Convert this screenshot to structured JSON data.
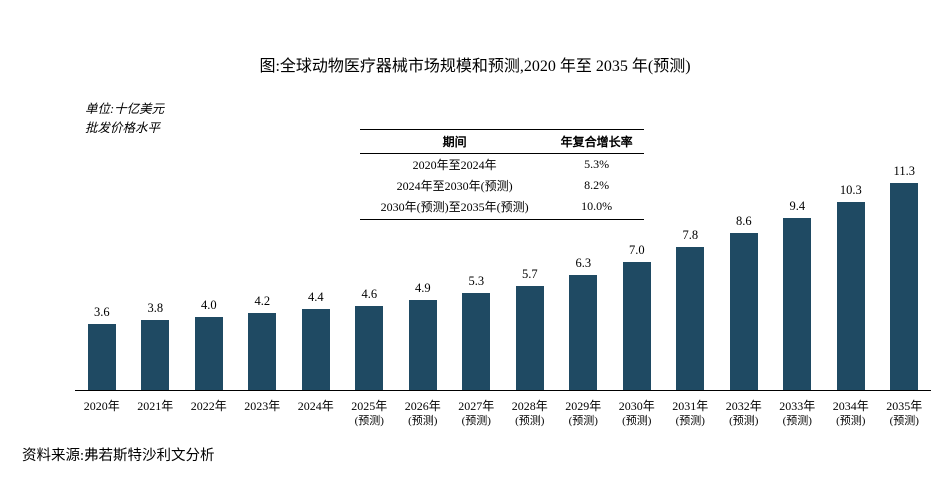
{
  "title": "图:全球动物医疗器械市场规模和预测,2020 年至 2035 年(预测)",
  "unit_note": {
    "line1": "单位:十亿美元",
    "line2": "批发价格水平"
  },
  "cagr_table": {
    "headers": [
      "期间",
      "年复合增长率"
    ],
    "rows": [
      [
        "2020年至2024年",
        "5.3%"
      ],
      [
        "2024年至2030年(预测)",
        "8.2%"
      ],
      [
        "2030年(预测)至2035年(预测)",
        "10.0%"
      ]
    ]
  },
  "chart_data": {
    "type": "bar",
    "title": "全球动物医疗器械市场规模和预测,2020年至2035年(预测)",
    "unit": "十亿美元(批发价格水平)",
    "categories": [
      "2020年",
      "2021年",
      "2022年",
      "2023年",
      "2024年",
      "2025年",
      "2026年",
      "2027年",
      "2028年",
      "2029年",
      "2030年",
      "2031年",
      "2032年",
      "2033年",
      "2034年",
      "2035年"
    ],
    "forecast_flags": [
      false,
      false,
      false,
      false,
      false,
      true,
      true,
      true,
      true,
      true,
      true,
      true,
      true,
      true,
      true,
      true
    ],
    "forecast_label": "(预测)",
    "values": [
      3.6,
      3.8,
      4.0,
      4.2,
      4.4,
      4.6,
      4.9,
      5.3,
      5.7,
      6.3,
      7.0,
      7.8,
      8.6,
      9.4,
      10.3,
      11.3
    ],
    "ylim": [
      0,
      12
    ],
    "grid": false,
    "legend": "none",
    "bar_color": "#1f4a63"
  },
  "source": "资料来源:弗若斯特沙利文分析"
}
